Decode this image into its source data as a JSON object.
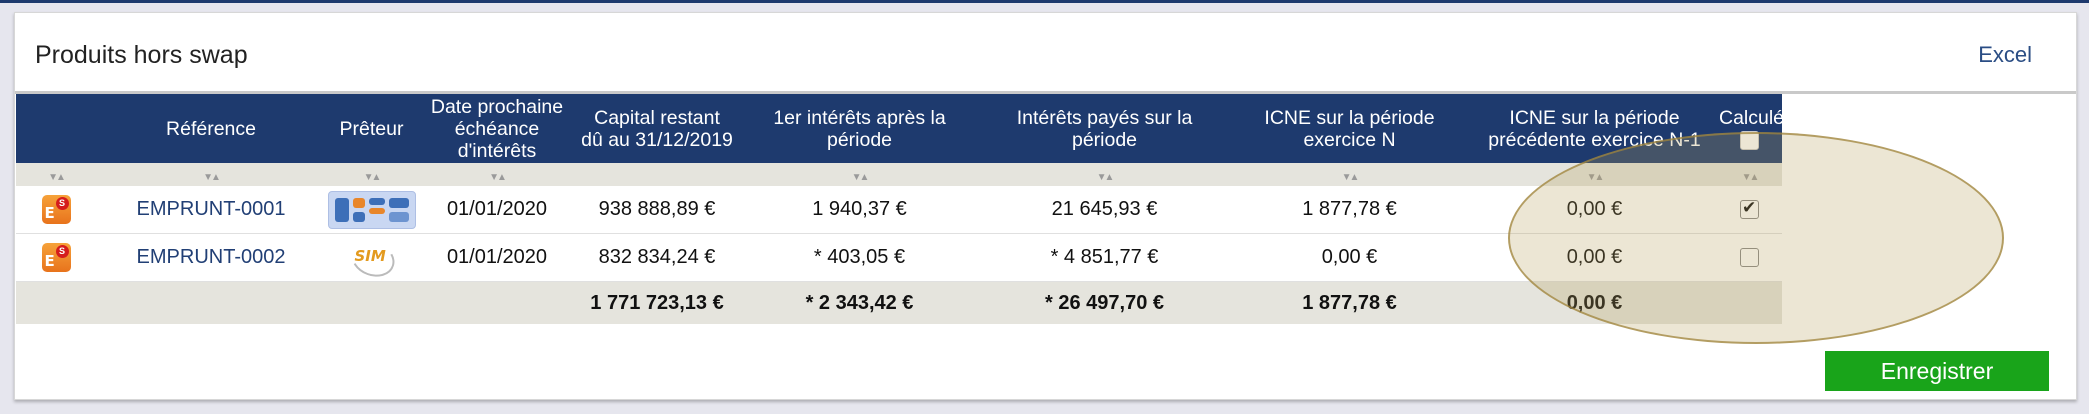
{
  "panel": {
    "title": "Produits hors swap",
    "excel_label": "Excel",
    "save_label": "Enregistrer"
  },
  "columns": [
    "",
    "Référence",
    "Prêteur",
    "Date prochaine échéance d'intérêts",
    "Capital restant dû au 31/12/2019",
    "1er intérêts après la période",
    "Intérêts payés sur la période",
    "ICNE sur la période exercice N",
    "ICNE sur la période précédente exercice N-1",
    "Calculé"
  ],
  "rows": [
    {
      "product_icon": "es-product-icon",
      "reference": "EMPRUNT-0001",
      "lender_logo": "lender-logo-blue-blocks",
      "next_date": "01/01/2020",
      "capital": "938 888,89 €",
      "first_interest": "1 940,37 €",
      "interest_paid": "21 645,93 €",
      "icne_n": "1 877,78 €",
      "icne_n1": "0,00 €",
      "calculated": true
    },
    {
      "product_icon": "es-product-icon",
      "reference": "EMPRUNT-0002",
      "lender_logo": "lender-logo-sim",
      "lender_logo_text": "SIM",
      "next_date": "01/01/2020",
      "capital": "832 834,24 €",
      "first_interest": "* 403,05 €",
      "interest_paid": "* 4 851,77 €",
      "icne_n": "0,00 €",
      "icne_n1": "0,00 €",
      "calculated": false
    }
  ],
  "totals": {
    "capital": "1 771 723,13 €",
    "first_interest": "* 2 343,42 €",
    "interest_paid": "* 26 497,70 €",
    "icne_n": "1 877,78 €",
    "icne_n1": "0,00 €"
  },
  "colors": {
    "header_bg": "#1e3a6e",
    "link": "#213f75",
    "save_button": "#19a41a",
    "highlight": "#b59e5a"
  }
}
